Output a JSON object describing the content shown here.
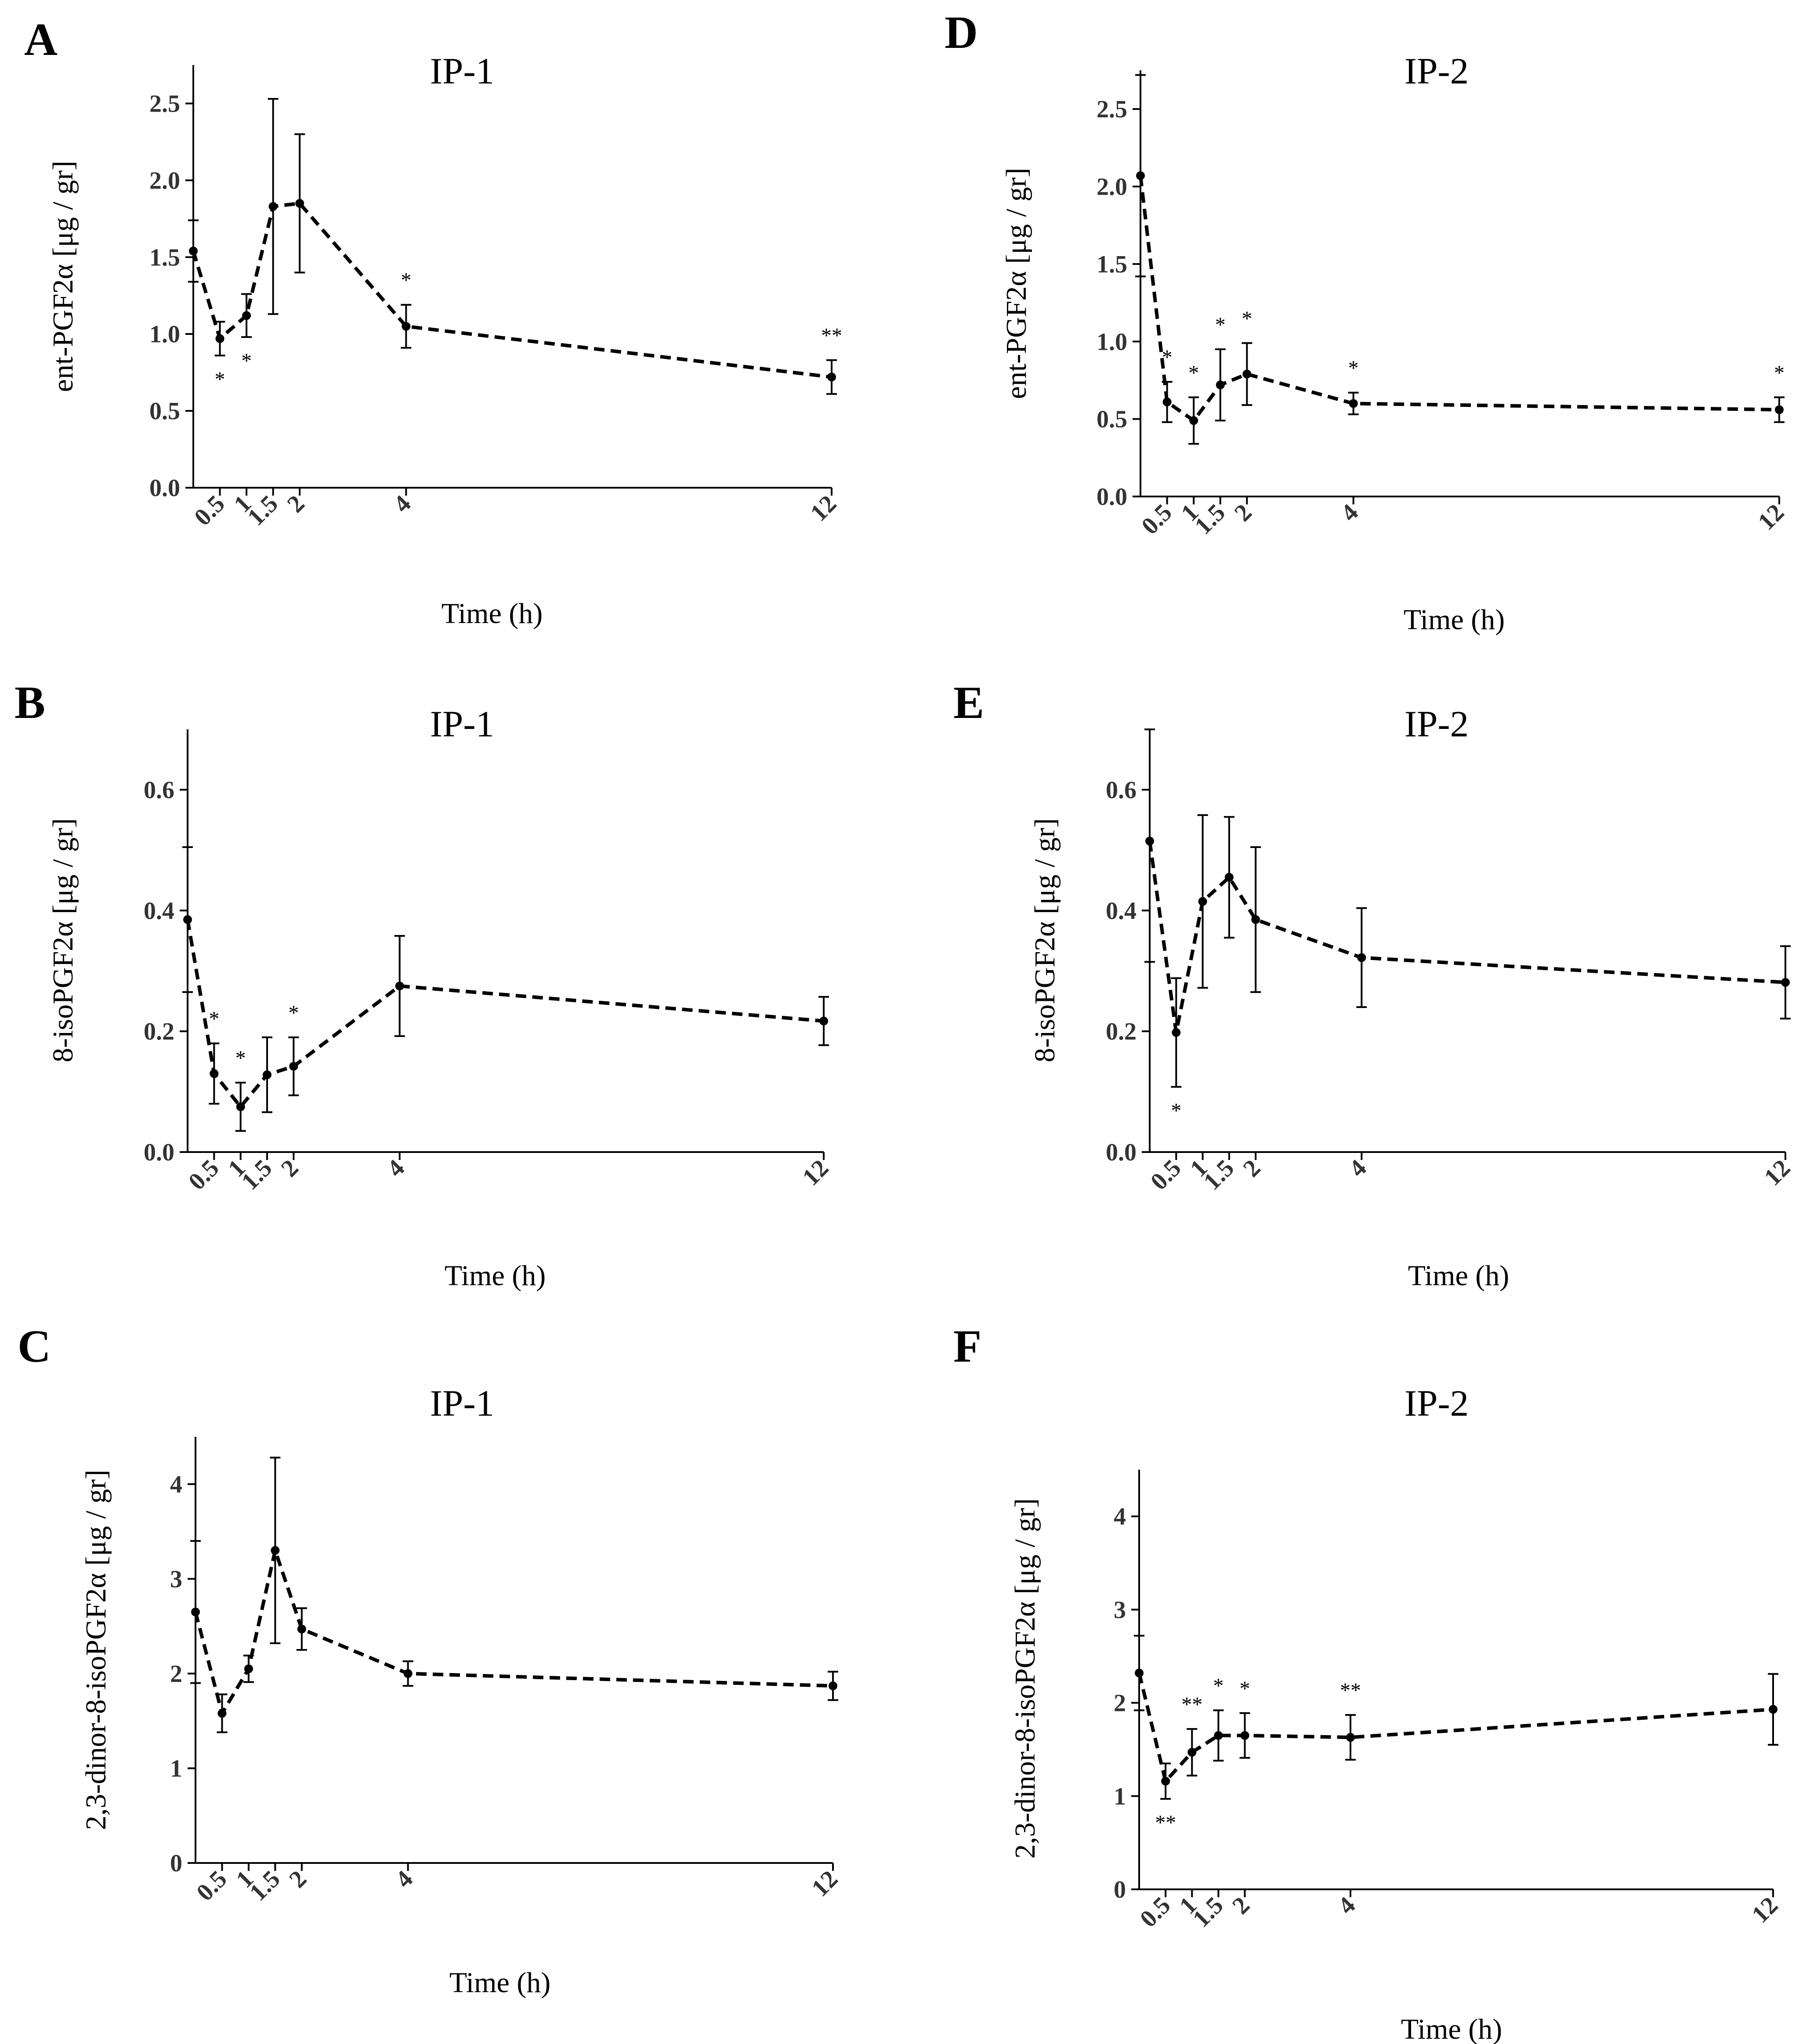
{
  "chart_data": [
    {
      "id": "A",
      "letter": "A",
      "type": "line",
      "title": "IP-1",
      "xlabel": "Time (h)",
      "ylabel": "ent-PGF2α [μg / gr]",
      "ylim": [
        0,
        2.75
      ],
      "yticks": [
        0.0,
        0.5,
        1.0,
        1.5,
        2.0,
        2.5
      ],
      "ytick_labels": [
        "0.0",
        "0.5",
        "1.0",
        "1.5",
        "2.0",
        "2.5"
      ],
      "xticks": [
        0.5,
        1,
        1.5,
        2,
        4,
        12
      ],
      "xtick_labels": [
        "0.5",
        "1",
        "1.5",
        "2",
        "4",
        "12"
      ],
      "x": [
        0,
        0.5,
        1,
        1.5,
        2,
        4,
        12
      ],
      "values": [
        1.54,
        0.97,
        1.12,
        1.83,
        1.85,
        1.05,
        0.72
      ],
      "errors": [
        0.2,
        0.11,
        0.14,
        0.7,
        0.45,
        0.14,
        0.11
      ],
      "annotations": [
        {
          "x": 0.5,
          "text": "*",
          "pos": "below"
        },
        {
          "x": 1,
          "text": "*",
          "pos": "below"
        },
        {
          "x": 4,
          "text": "*",
          "pos": "above"
        },
        {
          "x": 12,
          "text": "**",
          "pos": "above"
        }
      ]
    },
    {
      "id": "B",
      "letter": "B",
      "type": "line",
      "title": "IP-1",
      "xlabel": "Time (h)",
      "ylabel": "8-isoPGF2α [μg / gr]",
      "ylim": [
        0,
        0.7
      ],
      "yticks": [
        0.0,
        0.2,
        0.4,
        0.6
      ],
      "ytick_labels": [
        "0.0",
        "0.2",
        "0.4",
        "0.6"
      ],
      "xticks": [
        0.5,
        1,
        1.5,
        2,
        4,
        12
      ],
      "xtick_labels": [
        "0.5",
        "1",
        "1.5",
        "2",
        "4",
        "12"
      ],
      "x": [
        0,
        0.5,
        1,
        1.5,
        2,
        4,
        12
      ],
      "values": [
        0.385,
        0.13,
        0.075,
        0.128,
        0.142,
        0.275,
        0.217
      ],
      "errors": [
        0.12,
        0.05,
        0.04,
        0.062,
        0.048,
        0.083,
        0.04
      ],
      "annotations": [
        {
          "x": 0.5,
          "text": "*",
          "pos": "above"
        },
        {
          "x": 1,
          "text": "*",
          "pos": "above"
        },
        {
          "x": 2,
          "text": "*",
          "pos": "above"
        }
      ]
    },
    {
      "id": "C",
      "letter": "C",
      "type": "line",
      "title": "IP-1",
      "xlabel": "Time (h)",
      "ylabel": "2,3-dinor-8-isoPGF2α [μg / gr]",
      "ylim": [
        0,
        4.5
      ],
      "yticks": [
        0,
        1,
        2,
        3,
        4
      ],
      "ytick_labels": [
        "0",
        "1",
        "2",
        "3",
        "4"
      ],
      "xticks": [
        0.5,
        1,
        1.5,
        2,
        4,
        12
      ],
      "xtick_labels": [
        "0.5",
        "1",
        "1.5",
        "2",
        "4",
        "12"
      ],
      "x": [
        0,
        0.5,
        1,
        1.5,
        2,
        4,
        12
      ],
      "values": [
        2.65,
        1.58,
        2.05,
        3.3,
        2.47,
        2.0,
        1.87
      ],
      "errors": [
        0.75,
        0.2,
        0.14,
        0.98,
        0.22,
        0.13,
        0.15
      ],
      "annotations": []
    },
    {
      "id": "D",
      "letter": "D",
      "type": "line",
      "title": "IP-2",
      "xlabel": "Time (h)",
      "ylabel": "ent-PGF2α [μg / gr]",
      "ylim": [
        0,
        2.75
      ],
      "yticks": [
        0.0,
        0.5,
        1.0,
        1.5,
        2.0,
        2.5
      ],
      "ytick_labels": [
        "0.0",
        "0.5",
        "1.0",
        "1.5",
        "2.0",
        "2.5"
      ],
      "xticks": [
        0.5,
        1,
        1.5,
        2,
        4,
        12
      ],
      "xtick_labels": [
        "0.5",
        "1",
        "1.5",
        "2",
        "4",
        "12"
      ],
      "x": [
        0,
        0.5,
        1,
        1.5,
        2,
        4,
        12
      ],
      "values": [
        2.07,
        0.61,
        0.49,
        0.72,
        0.79,
        0.6,
        0.56
      ],
      "errors": [
        0.65,
        0.13,
        0.15,
        0.23,
        0.2,
        0.07,
        0.08
      ],
      "annotations": [
        {
          "x": 0.5,
          "text": "*",
          "pos": "above"
        },
        {
          "x": 1,
          "text": "*",
          "pos": "above"
        },
        {
          "x": 1.5,
          "text": "*",
          "pos": "above"
        },
        {
          "x": 2,
          "text": "*",
          "pos": "above"
        },
        {
          "x": 4,
          "text": "*",
          "pos": "above"
        },
        {
          "x": 12,
          "text": "*",
          "pos": "above"
        }
      ]
    },
    {
      "id": "E",
      "letter": "E",
      "type": "line",
      "title": "IP-2",
      "xlabel": "Time (h)",
      "ylabel": "8-isoPGF2α [μg / gr]",
      "ylim": [
        0,
        0.7
      ],
      "yticks": [
        0.0,
        0.2,
        0.4,
        0.6
      ],
      "ytick_labels": [
        "0.0",
        "0.2",
        "0.4",
        "0.6"
      ],
      "xticks": [
        0.5,
        1,
        1.5,
        2,
        4,
        12
      ],
      "xtick_labels": [
        "0.5",
        "1",
        "1.5",
        "2",
        "4",
        "12"
      ],
      "x": [
        0,
        0.5,
        1,
        1.5,
        2,
        4,
        12
      ],
      "values": [
        0.515,
        0.198,
        0.415,
        0.455,
        0.385,
        0.322,
        0.281
      ],
      "errors": [
        0.2,
        0.09,
        0.143,
        0.1,
        0.12,
        0.082,
        0.06
      ],
      "annotations": [
        {
          "x": 0.5,
          "text": "*",
          "pos": "below"
        }
      ]
    },
    {
      "id": "F",
      "letter": "F",
      "type": "line",
      "title": "IP-2",
      "xlabel": "Time (h)",
      "ylabel": "2,3-dinor-8-isoPGF2α [μg / gr]",
      "ylim": [
        0,
        4.5
      ],
      "yticks": [
        0,
        1,
        2,
        3,
        4
      ],
      "ytick_labels": [
        "0",
        "1",
        "2",
        "3",
        "4"
      ],
      "xticks": [
        0.5,
        1,
        1.5,
        2,
        4,
        12
      ],
      "xtick_labels": [
        "0.5",
        "1",
        "1.5",
        "2",
        "4",
        "12"
      ],
      "x": [
        0,
        0.5,
        1,
        1.5,
        2,
        4,
        12
      ],
      "values": [
        2.32,
        1.16,
        1.47,
        1.65,
        1.65,
        1.63,
        1.93
      ],
      "errors": [
        0.4,
        0.19,
        0.25,
        0.27,
        0.24,
        0.24,
        0.38
      ],
      "annotations": [
        {
          "x": 0.5,
          "text": "**",
          "pos": "below"
        },
        {
          "x": 1,
          "text": "**",
          "pos": "above"
        },
        {
          "x": 1.5,
          "text": "*",
          "pos": "above"
        },
        {
          "x": 2,
          "text": "*",
          "pos": "above"
        },
        {
          "x": 4,
          "text": "**",
          "pos": "above"
        }
      ]
    }
  ]
}
